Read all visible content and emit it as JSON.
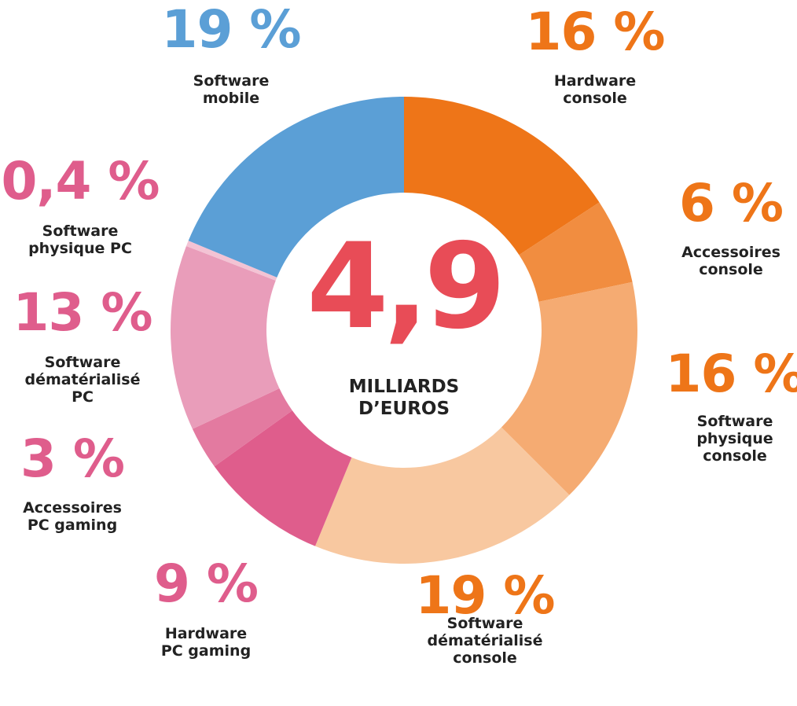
{
  "chart_data": {
    "type": "donut",
    "center_value": "4,9",
    "center_label": "MILLIARDS\nD’EUROS",
    "categories": [
      "Hardware\nconsole",
      "Accessoires\nconsole",
      "Software\nphysique\nconsole",
      "Software\ndématérialisé\nconsole",
      "Hardware\nPC gaming",
      "Accessoires\nPC gaming",
      "Software\ndématérialisé\nPC",
      "Software\nphysique PC",
      "Software\nmobile"
    ],
    "values": [
      16,
      6,
      16,
      19,
      9,
      3,
      13,
      0.4,
      19
    ],
    "value_labels": [
      "16 %",
      "6 %",
      "16 %",
      "19 %",
      "9 %",
      "3 %",
      "13 %",
      "0,4 %",
      "19 %"
    ],
    "colors": [
      "#ee7518",
      "#f18d40",
      "#f5ab72",
      "#f8c8a0",
      "#df5d8c",
      "#e37aa0",
      "#e99dba",
      "#f3c3d4",
      "#5b9fd6"
    ],
    "label_colors": [
      "#ee7518",
      "#ee7518",
      "#ee7518",
      "#ee7518",
      "#df5d8c",
      "#df5d8c",
      "#df5d8c",
      "#df5d8c",
      "#5b9fd6"
    ],
    "center_color": "#e84c57"
  }
}
